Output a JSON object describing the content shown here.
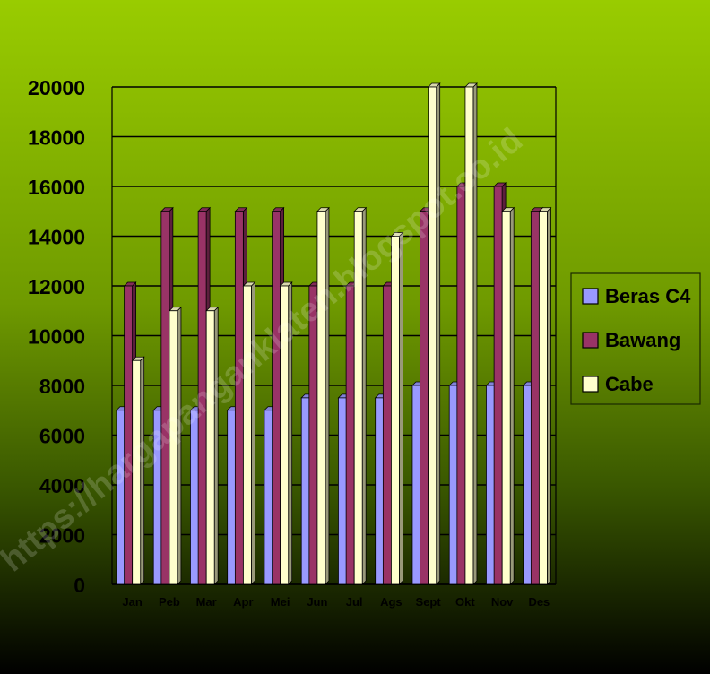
{
  "chart_data": {
    "type": "bar",
    "title": "",
    "xlabel": "",
    "ylabel": "",
    "categories": [
      "Jan",
      "Peb",
      "Mar",
      "Apr",
      "Mei",
      "Jun",
      "Jul",
      "Ags",
      "Sept",
      "Okt",
      "Nov",
      "Des"
    ],
    "series": [
      {
        "name": "Beras C4",
        "color": "#9999ff",
        "values": [
          7000,
          7000,
          7000,
          7000,
          7000,
          7500,
          7500,
          7500,
          8000,
          8000,
          8000,
          8000
        ]
      },
      {
        "name": "Bawang",
        "color": "#993366",
        "values": [
          12000,
          15000,
          15000,
          15000,
          15000,
          12000,
          12000,
          12000,
          15000,
          16000,
          16000,
          15000
        ]
      },
      {
        "name": "Cabe",
        "color": "#ffffcc",
        "values": [
          9000,
          11000,
          11000,
          12000,
          12000,
          15000,
          15000,
          14000,
          20000,
          20000,
          15000,
          15000
        ]
      }
    ],
    "ylim": [
      0,
      20000
    ],
    "yticks": [
      0,
      2000,
      4000,
      6000,
      8000,
      10000,
      12000,
      14000,
      16000,
      18000,
      20000
    ],
    "grid": true,
    "legend_position": "right"
  },
  "watermark": "https://hargapanganklaten.blogspot.co.id",
  "colors": {
    "background_top": "#99cc00",
    "background_bottom": "#000000",
    "gridline": "#000000"
  }
}
